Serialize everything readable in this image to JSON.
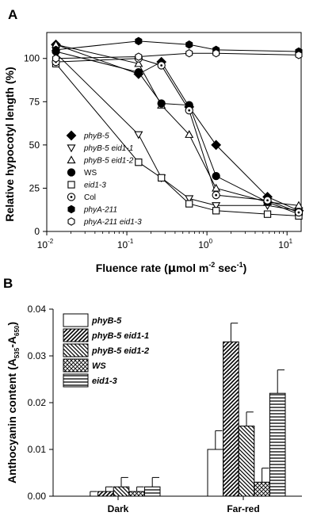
{
  "figure": {
    "panel_a_letter": "A",
    "panel_b_letter": "B"
  },
  "chart_data": [
    {
      "type": "line",
      "xscale": "log",
      "xlim": [
        0.01,
        15
      ],
      "ylim": [
        0,
        115
      ],
      "xlabel": "Fluence rate (μmol m-2 sec-1)",
      "xlabel_parts": {
        "pre": "Fluence rate (",
        "mu": "μ",
        "mid1": "mol m",
        "sup1": "-2",
        "mid2": " sec",
        "sup2": "-1",
        "post": ")"
      },
      "ylabel": "Relative hypocotyl length (%)",
      "x_ticks": [
        {
          "base": "10",
          "exp": "-2"
        },
        {
          "base": "10",
          "exp": "-1"
        },
        {
          "base": "10",
          "exp": "0"
        },
        {
          "base": "10",
          "exp": "1"
        }
      ],
      "x_tick_values": [
        0.01,
        0.1,
        1,
        10
      ],
      "y_ticks": [
        "0",
        "25",
        "50",
        "75",
        "100"
      ],
      "y_tick_values": [
        0,
        25,
        50,
        75,
        100
      ],
      "legend_position": "left",
      "series": [
        {
          "name": "phyB-5",
          "marker": "diamond-filled",
          "italic": true,
          "x": [
            0.013,
            0.14,
            0.27,
            0.6,
            1.3,
            5.7,
            14
          ],
          "values": [
            108,
            91,
            98,
            72,
            50,
            20,
            12
          ]
        },
        {
          "name": "phyB-5 eid1-1",
          "marker": "triangle-down-open",
          "italic": true,
          "x": [
            0.013,
            0.14,
            0.27,
            0.6,
            1.3,
            5.7,
            14
          ],
          "values": [
            103,
            56,
            31,
            19,
            15,
            15,
            12
          ]
        },
        {
          "name": "phyB-5 eid1-2",
          "marker": "triangle-up-open",
          "italic": true,
          "x": [
            0.013,
            0.14,
            0.27,
            0.6,
            1.3,
            5.7,
            14
          ],
          "values": [
            108,
            97,
            73,
            56,
            25,
            17,
            15
          ]
        },
        {
          "name": "WS",
          "marker": "circle-filled",
          "italic": false,
          "x": [
            0.013,
            0.14,
            0.27,
            0.6,
            1.3,
            5.7,
            14
          ],
          "values": [
            104,
            92,
            74,
            73,
            32,
            17,
            10
          ]
        },
        {
          "name": "eid1-3",
          "marker": "square-open",
          "italic": true,
          "x": [
            0.013,
            0.14,
            0.27,
            0.6,
            1.3,
            5.7,
            14
          ],
          "values": [
            97,
            40,
            31,
            16,
            12,
            10,
            9
          ]
        },
        {
          "name": "Col",
          "marker": "circle-dot",
          "italic": false,
          "x": [
            0.013,
            0.14,
            0.27,
            0.6,
            1.3,
            5.7,
            14
          ],
          "values": [
            98,
            100,
            96,
            70,
            21,
            18,
            11
          ]
        },
        {
          "name": "phyA-211",
          "marker": "hexagon-filled",
          "italic": true,
          "x": [
            0.013,
            0.14,
            0.6,
            1.3,
            14
          ],
          "values": [
            105,
            110,
            108,
            105,
            104
          ]
        },
        {
          "name": "phyA-211 eid1-3",
          "marker": "hexagon-open",
          "italic": true,
          "x": [
            0.013,
            0.14,
            0.6,
            1.3,
            14
          ],
          "values": [
            100,
            101,
            103,
            103,
            102
          ]
        }
      ]
    },
    {
      "type": "bar",
      "ylim": [
        0,
        0.04
      ],
      "xlabel": "",
      "ylabel": "Anthocyanin content (A535-A650)",
      "ylabel_parts": {
        "pre": "Anthocyanin content (A",
        "sub1": "535",
        "mid": "-A",
        "sub2": "650",
        "post": ")"
      },
      "y_ticks": [
        "0.00",
        "0.01",
        "0.02",
        "0.03",
        "0.04"
      ],
      "y_tick_values": [
        0,
        0.01,
        0.02,
        0.03,
        0.04
      ],
      "categories": [
        "Dark",
        "Far-red"
      ],
      "legend_position": "top-left",
      "series": [
        {
          "name": "phyB-5",
          "pattern": "empty",
          "values": [
            0.0,
            0.01
          ],
          "errors": [
            0.001,
            0.004
          ]
        },
        {
          "name": "phyB-5 eid1-1",
          "pattern": "diag-right",
          "values": [
            0.001,
            0.033
          ],
          "errors": [
            0.001,
            0.004
          ]
        },
        {
          "name": "phyB-5 eid1-2",
          "pattern": "diag-left",
          "values": [
            0.002,
            0.015
          ],
          "errors": [
            0.002,
            0.003
          ]
        },
        {
          "name": "WS",
          "pattern": "crosshatch",
          "values": [
            0.001,
            0.003
          ],
          "errors": [
            0.001,
            0.003
          ]
        },
        {
          "name": "eid1-3",
          "pattern": "horizontal",
          "values": [
            0.002,
            0.022
          ],
          "errors": [
            0.002,
            0.005
          ]
        }
      ]
    }
  ]
}
